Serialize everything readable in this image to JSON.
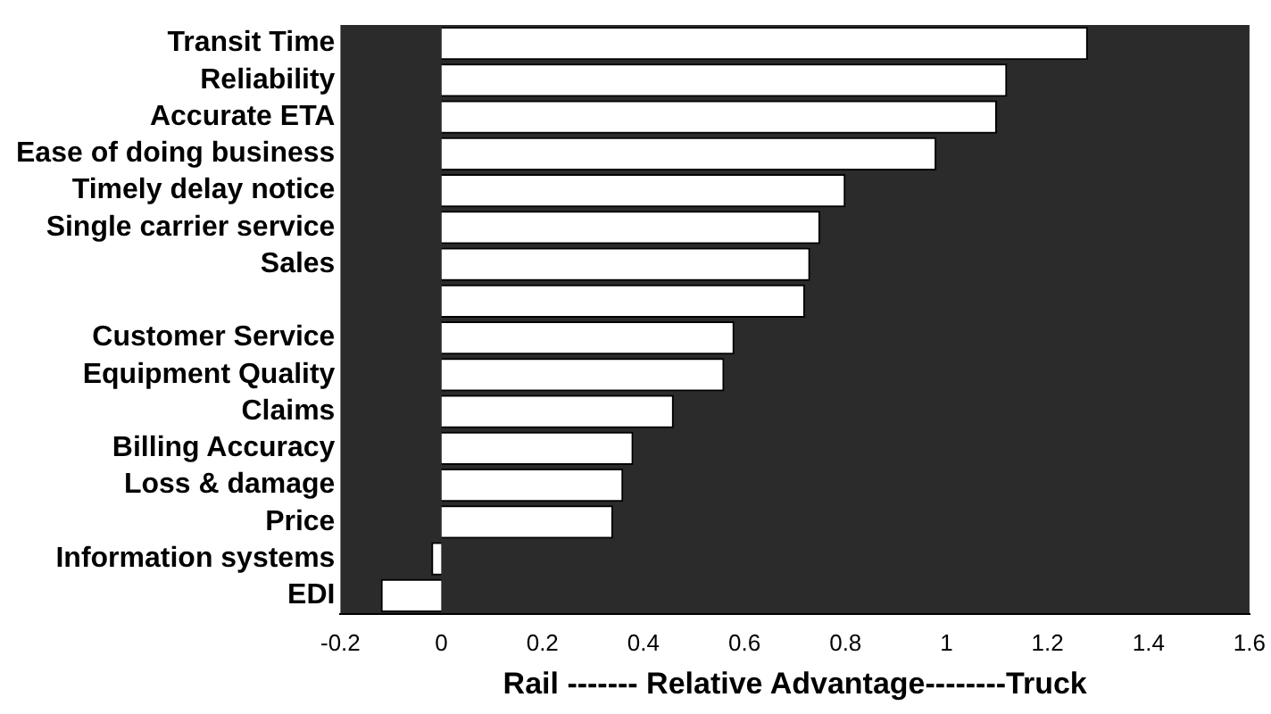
{
  "chart_data": {
    "type": "bar",
    "orientation": "horizontal",
    "xlabel": "Rail ------- Relative Advantage--------Truck",
    "categories": [
      "Transit Time",
      "Reliability",
      "Accurate ETA",
      "Ease of doing business",
      "Timely delay notice",
      "Single carrier service",
      "Sales",
      null,
      "Customer Service",
      "Equipment Quality",
      "Claims",
      "Billing Accuracy",
      "Loss & damage",
      "Price",
      "Information systems",
      "EDI"
    ],
    "values": [
      1.28,
      1.12,
      1.1,
      0.98,
      0.8,
      0.75,
      0.73,
      0.72,
      0.58,
      0.56,
      0.46,
      0.38,
      0.36,
      0.34,
      -0.02,
      -0.12
    ],
    "color": "#ffffff",
    "xlim": [
      -0.2,
      1.6
    ],
    "xticks": [
      -0.2,
      0,
      0.2,
      0.4,
      0.6,
      0.8,
      1,
      1.2,
      1.4,
      1.6
    ],
    "grid": false,
    "legend": false
  }
}
